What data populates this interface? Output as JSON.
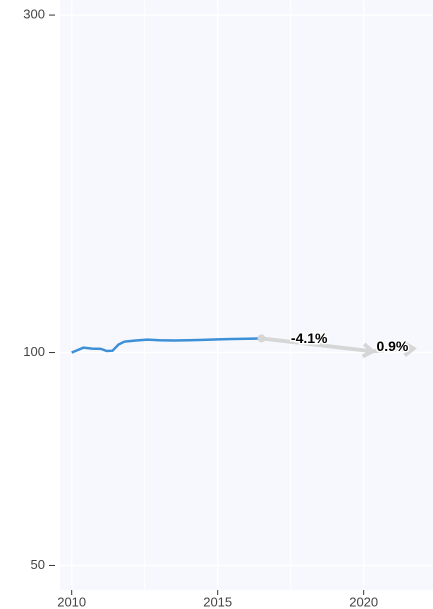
{
  "chart_data": {
    "type": "line",
    "log_y": true,
    "background": "#f6f8fe",
    "grid_color": "#ffffff",
    "xlim": [
      2009.6,
      2022.1
    ],
    "xticks": [
      2010,
      2015,
      2020
    ],
    "xgrid_minor": [
      2012.5,
      2017.5
    ],
    "ylim": [
      48,
      310
    ],
    "yticks": [
      50,
      100,
      300
    ],
    "series": [
      {
        "name": "history",
        "color": "#3d8fd6",
        "x": [
          2010,
          2010.2,
          2010.4,
          2010.7,
          2011.0,
          2011.2,
          2011.4,
          2011.6,
          2011.8,
          2012.2,
          2012.6,
          2013.0,
          2013.5,
          2014.0,
          2014.5,
          2015.0,
          2015.5,
          2016.0,
          2016.5
        ],
        "values": [
          100,
          100.8,
          101.6,
          101.3,
          101.2,
          100.5,
          100.6,
          102.6,
          103.6,
          104.0,
          104.3,
          104.1,
          104.0,
          104.1,
          104.2,
          104.4,
          104.5,
          104.6,
          104.7
        ]
      },
      {
        "name": "forecast",
        "color": "#d6d6d6",
        "arrows": true,
        "x": [
          2016.5,
          2020.3,
          2021.7
        ],
        "values": [
          104.7,
          100.4,
          101.3
        ],
        "segment_labels": [
          "-4.1%",
          "0.9%"
        ]
      }
    ]
  }
}
